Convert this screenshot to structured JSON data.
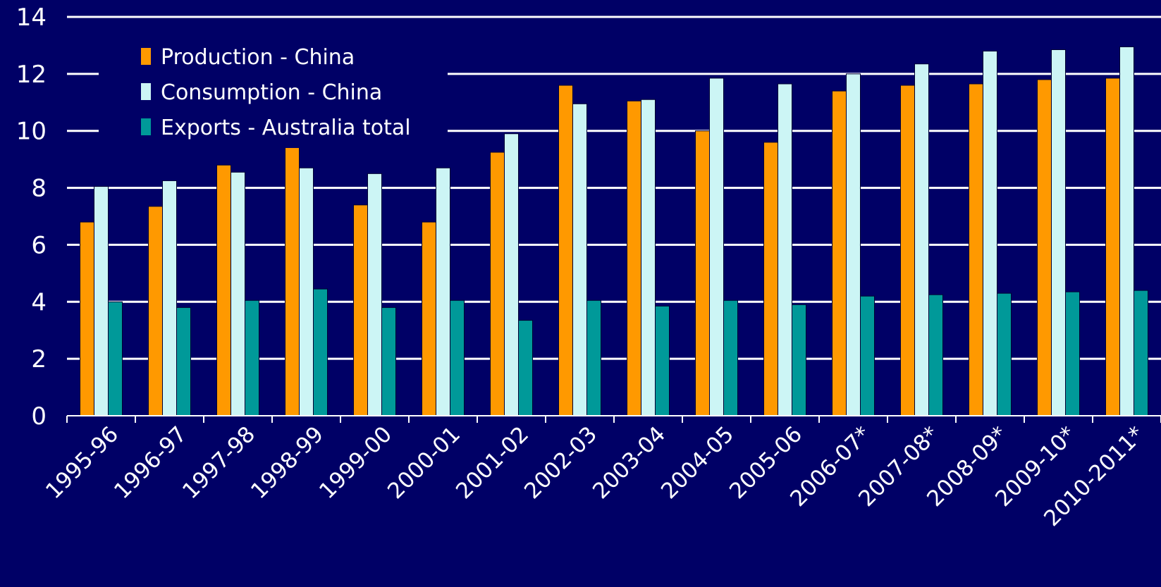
{
  "colors": {
    "background": "#000066",
    "grid": "#ffffff",
    "axis": "#ffffff",
    "text": "#ffffff"
  },
  "chart_data": {
    "type": "bar",
    "title": "",
    "xlabel": "",
    "ylabel": "",
    "ylim": [
      0,
      14
    ],
    "yticks": [
      "0",
      "2",
      "4",
      "6",
      "8",
      "10",
      "12",
      "14"
    ],
    "grid": true,
    "legend_position": "top-left",
    "categories": [
      "1995-96",
      "1996-97",
      "1997-98",
      "1998-99",
      "1999-00",
      "2000-01",
      "2001-02",
      "2002-03",
      "2003-04",
      "2004-05",
      "2005-06",
      "2006-07*",
      "2007-08*",
      "2008-09*",
      "2009-10*",
      "2010-2011*"
    ],
    "series": [
      {
        "name": "Production - China",
        "color": "#FF9900",
        "values": [
          6.8,
          7.35,
          8.8,
          9.75,
          7.4,
          6.8,
          9.25,
          11.6,
          11.05,
          10.0,
          9.6,
          11.4,
          11.6,
          11.65,
          11.8,
          11.85
        ]
      },
      {
        "name": "Consumption - China",
        "color": "#CCF5F5",
        "values": [
          8.05,
          8.25,
          8.55,
          8.7,
          8.5,
          8.7,
          9.9,
          10.95,
          11.1,
          11.85,
          11.65,
          12.0,
          12.35,
          12.8,
          12.85,
          12.95
        ]
      },
      {
        "name": "Exports - Australia total",
        "color": "#009999",
        "values": [
          4.0,
          3.8,
          4.05,
          4.45,
          3.8,
          4.05,
          3.35,
          4.05,
          3.85,
          4.05,
          3.9,
          4.2,
          4.25,
          4.3,
          4.35,
          4.4
        ]
      }
    ]
  }
}
